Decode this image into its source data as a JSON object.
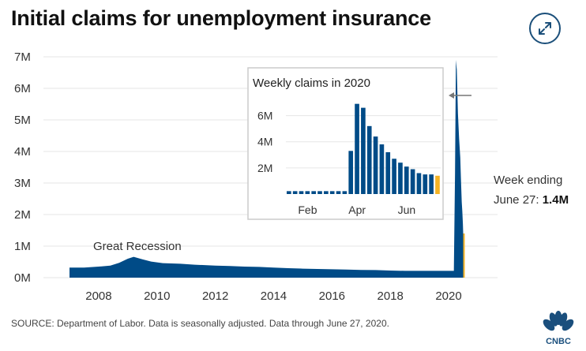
{
  "title": "Initial claims for unemployment insurance",
  "source": "SOURCE: Department of Labor. Data is seasonally adjusted. Data through June 27, 2020.",
  "logo_text": "CNBC",
  "icons": {
    "expand": "expand-arrows-icon",
    "logo": "cnbc-peacock-logo"
  },
  "colors": {
    "bar": "#004b87",
    "highlight": "#f5b324",
    "text": "#333333",
    "inset_border": "#cccccc"
  },
  "chart_data": [
    {
      "type": "area",
      "title": "",
      "xlabel": "",
      "ylabel": "",
      "ylim": [
        0,
        7000000
      ],
      "xlim": [
        2006,
        2021
      ],
      "y_ticks": [
        0,
        1000000,
        2000000,
        3000000,
        4000000,
        5000000,
        6000000,
        7000000
      ],
      "y_tick_labels": [
        "0M",
        "1M",
        "2M",
        "3M",
        "4M",
        "5M",
        "6M",
        "7M"
      ],
      "x_ticks": [
        2008,
        2010,
        2012,
        2014,
        2016,
        2018,
        2020
      ],
      "x_tick_labels": [
        "2008",
        "2010",
        "2012",
        "2014",
        "2016",
        "2018",
        "2020"
      ],
      "grid": true,
      "series": [
        {
          "points": [
            [
              2007.0,
              320000
            ],
            [
              2007.5,
              320000
            ],
            [
              2008.0,
              350000
            ],
            [
              2008.4,
              380000
            ],
            [
              2008.7,
              470000
            ],
            [
              2009.0,
              600000
            ],
            [
              2009.2,
              660000
            ],
            [
              2009.5,
              580000
            ],
            [
              2009.8,
              510000
            ],
            [
              2010.2,
              460000
            ],
            [
              2010.8,
              440000
            ],
            [
              2011.3,
              410000
            ],
            [
              2012.0,
              380000
            ],
            [
              2012.5,
              370000
            ],
            [
              2013.0,
              350000
            ],
            [
              2013.5,
              340000
            ],
            [
              2014.0,
              320000
            ],
            [
              2014.5,
              300000
            ],
            [
              2015.0,
              285000
            ],
            [
              2015.5,
              275000
            ],
            [
              2016.0,
              265000
            ],
            [
              2016.5,
              255000
            ],
            [
              2017.0,
              245000
            ],
            [
              2017.5,
              240000
            ],
            [
              2018.0,
              225000
            ],
            [
              2018.5,
              215000
            ],
            [
              2019.0,
              215000
            ],
            [
              2019.5,
              215000
            ],
            [
              2020.0,
              215000
            ],
            [
              2020.18,
              215000
            ],
            [
              2020.22,
              3300000
            ],
            [
              2020.25,
              6900000
            ],
            [
              2020.28,
              6600000
            ],
            [
              2020.32,
              5200000
            ],
            [
              2020.36,
              4400000
            ],
            [
              2020.4,
              3800000
            ],
            [
              2020.42,
              3200000
            ],
            [
              2020.45,
              2400000
            ],
            [
              2020.47,
              2100000
            ],
            [
              2020.49,
              1700000
            ],
            [
              2020.5,
              1400000
            ]
          ]
        }
      ],
      "highlight": {
        "label": "Week ending June 27: 1.4M",
        "value": 1400000
      },
      "annotations": [
        {
          "text": "Great Recession",
          "x": 2009.5,
          "y": 660000
        },
        {
          "line1": "Week ending",
          "line2_prefix": "June 27: ",
          "line2_value": "1.4M"
        }
      ]
    },
    {
      "type": "bar",
      "title": "Weekly claims in 2020",
      "xlabel": "",
      "ylabel": "",
      "ylim": [
        0,
        7000000
      ],
      "y_ticks": [
        2000000,
        4000000,
        6000000
      ],
      "y_tick_labels": [
        "2M",
        "4M",
        "6M"
      ],
      "x_tick_labels": [
        "Feb",
        "Apr",
        "Jun"
      ],
      "x_tick_positions": [
        3,
        11,
        19
      ],
      "grid": true,
      "values": [
        220000,
        220000,
        220000,
        220000,
        220000,
        220000,
        220000,
        220000,
        220000,
        220000,
        3300000,
        6900000,
        6600000,
        5200000,
        4400000,
        3800000,
        3200000,
        2700000,
        2400000,
        2100000,
        1900000,
        1600000,
        1500000,
        1500000,
        1400000
      ],
      "highlight_index": 24
    }
  ]
}
